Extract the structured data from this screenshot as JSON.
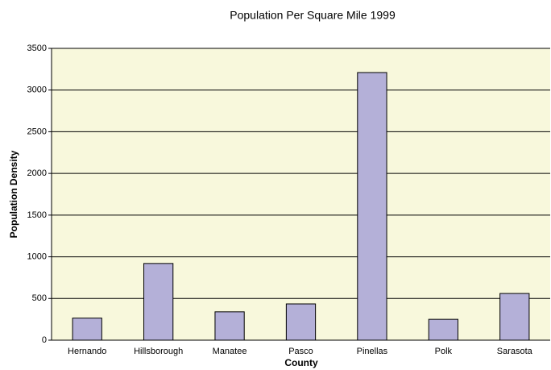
{
  "chart_data": {
    "type": "bar",
    "title": "Population Per Square Mile 1999",
    "x_label": "County",
    "y_label": "Population Density",
    "categories": [
      "Hernando",
      "Hillsborough",
      "Manatee",
      "Pasco",
      "Pinellas",
      "Polk",
      "Sarasota"
    ],
    "values": [
      265,
      920,
      340,
      435,
      3210,
      250,
      560
    ],
    "color": "#b4b0d8",
    "ylim": [
      0,
      3500
    ],
    "yticks": [
      0,
      500,
      1000,
      1500,
      2000,
      2500,
      3000,
      3500
    ],
    "grid": true
  }
}
